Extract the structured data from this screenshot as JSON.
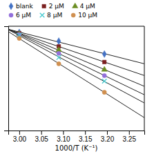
{
  "chart_data": {
    "type": "scatter",
    "xlabel": "1000/T (K⁻¹)",
    "xlim": [
      2.975,
      3.285
    ],
    "xticks": [
      {
        "value": 3.0,
        "label": "3.00"
      },
      3.05,
      {
        "value": 3.1,
        "label": "3.10"
      },
      3.15,
      {
        "value": 3.2,
        "label": "3.20"
      },
      3.25
    ],
    "ylim": [
      1,
      4
    ],
    "yticks": [],
    "tick_labels": "x",
    "grid": false,
    "legend": "top",
    "series": [
      {
        "type": "line",
        "color": "#222222",
        "line_style": "solid",
        "x": [
          2.97,
          3.29
        ],
        "values": [
          3.9296,
          2.9039
        ]
      },
      {
        "type": "scatter",
        "name": "blank",
        "color": "#4472C4",
        "marker": "diamond",
        "x": [
          3.0,
          3.09,
          3.194
        ],
        "values": [
          3.82,
          3.57,
          3.2
        ]
      },
      {
        "type": "line",
        "color": "#222222",
        "line_style": "solid",
        "x": [
          2.97,
          3.29
        ],
        "values": [
          3.9302,
          2.5607
        ]
      },
      {
        "type": "scatter",
        "name": "2 μM",
        "color": "#7B2020",
        "marker": "square",
        "x": [
          3.0,
          3.09,
          3.194
        ],
        "values": [
          3.8,
          3.42,
          2.97
        ]
      },
      {
        "type": "line",
        "color": "#222222",
        "line_style": "solid",
        "x": [
          2.97,
          3.29
        ],
        "values": [
          3.9458,
          2.2454
        ]
      },
      {
        "type": "scatter",
        "name": "4 μM",
        "color": "#6B8E23",
        "marker": "triangle",
        "x": [
          3.0,
          3.09,
          3.194
        ],
        "values": [
          3.78,
          3.32,
          2.75
        ]
      },
      {
        "type": "line",
        "color": "#222222",
        "line_style": "solid",
        "x": [
          2.97,
          3.29
        ],
        "values": [
          3.9452,
          1.9982
        ]
      },
      {
        "type": "scatter",
        "name": "6 μM",
        "color": "#9370DB",
        "marker": "circle",
        "x": [
          3.0,
          3.09,
          3.194
        ],
        "values": [
          3.76,
          3.22,
          2.58
        ]
      },
      {
        "type": "line",
        "color": "#222222",
        "line_style": "solid",
        "x": [
          2.97,
          3.29
        ],
        "values": [
          3.9341,
          1.7589
        ]
      },
      {
        "type": "scatter",
        "name": "8 μM",
        "color": "#48CAD0",
        "marker": "x",
        "x": [
          3.0,
          3.09,
          3.194
        ],
        "values": [
          3.74,
          3.1,
          2.42
        ]
      },
      {
        "type": "line",
        "color": "#222222",
        "line_style": "solid",
        "x": [
          2.97,
          3.29
        ],
        "values": [
          3.8857,
          1.3299
        ]
      },
      {
        "type": "scatter",
        "name": "10 μM",
        "color": "#D09050",
        "marker": "circle",
        "x": [
          3.0,
          3.09,
          3.194
        ],
        "values": [
          3.65,
          2.92,
          2.1
        ]
      }
    ]
  }
}
